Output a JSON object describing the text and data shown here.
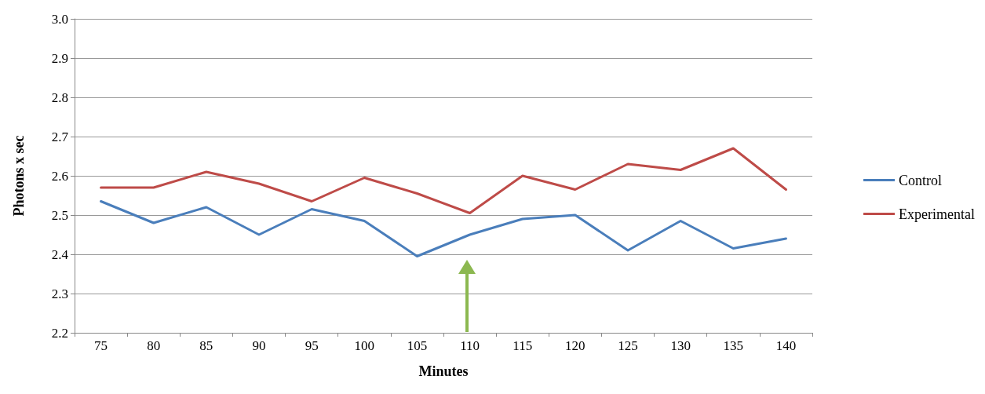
{
  "chart_data": {
    "type": "line",
    "xlabel": "Minutes",
    "ylabel": "Photons x sec",
    "categories": [
      "75",
      "80",
      "85",
      "90",
      "95",
      "100",
      "105",
      "110",
      "115",
      "120",
      "125",
      "130",
      "135",
      "140"
    ],
    "series": [
      {
        "name": "Control",
        "color": "#4a7ebb",
        "values": [
          2.535,
          2.48,
          2.52,
          2.45,
          2.515,
          2.485,
          2.395,
          2.45,
          2.49,
          2.5,
          2.41,
          2.485,
          2.415,
          2.44
        ]
      },
      {
        "name": "Experimental",
        "color": "#be4b48",
        "values": [
          2.57,
          2.57,
          2.61,
          2.58,
          2.535,
          2.595,
          2.555,
          2.505,
          2.6,
          2.565,
          2.63,
          2.615,
          2.67,
          2.565
        ]
      }
    ],
    "ylim": [
      2.2,
      3.0
    ],
    "yticks": [
      2.2,
      2.3,
      2.4,
      2.5,
      2.6,
      2.7,
      2.8,
      2.9,
      {
        "value": 3.0,
        "label": "3.0"
      }
    ],
    "grid": "y",
    "legend": "right",
    "marker": "none",
    "line_style": "solid"
  }
}
